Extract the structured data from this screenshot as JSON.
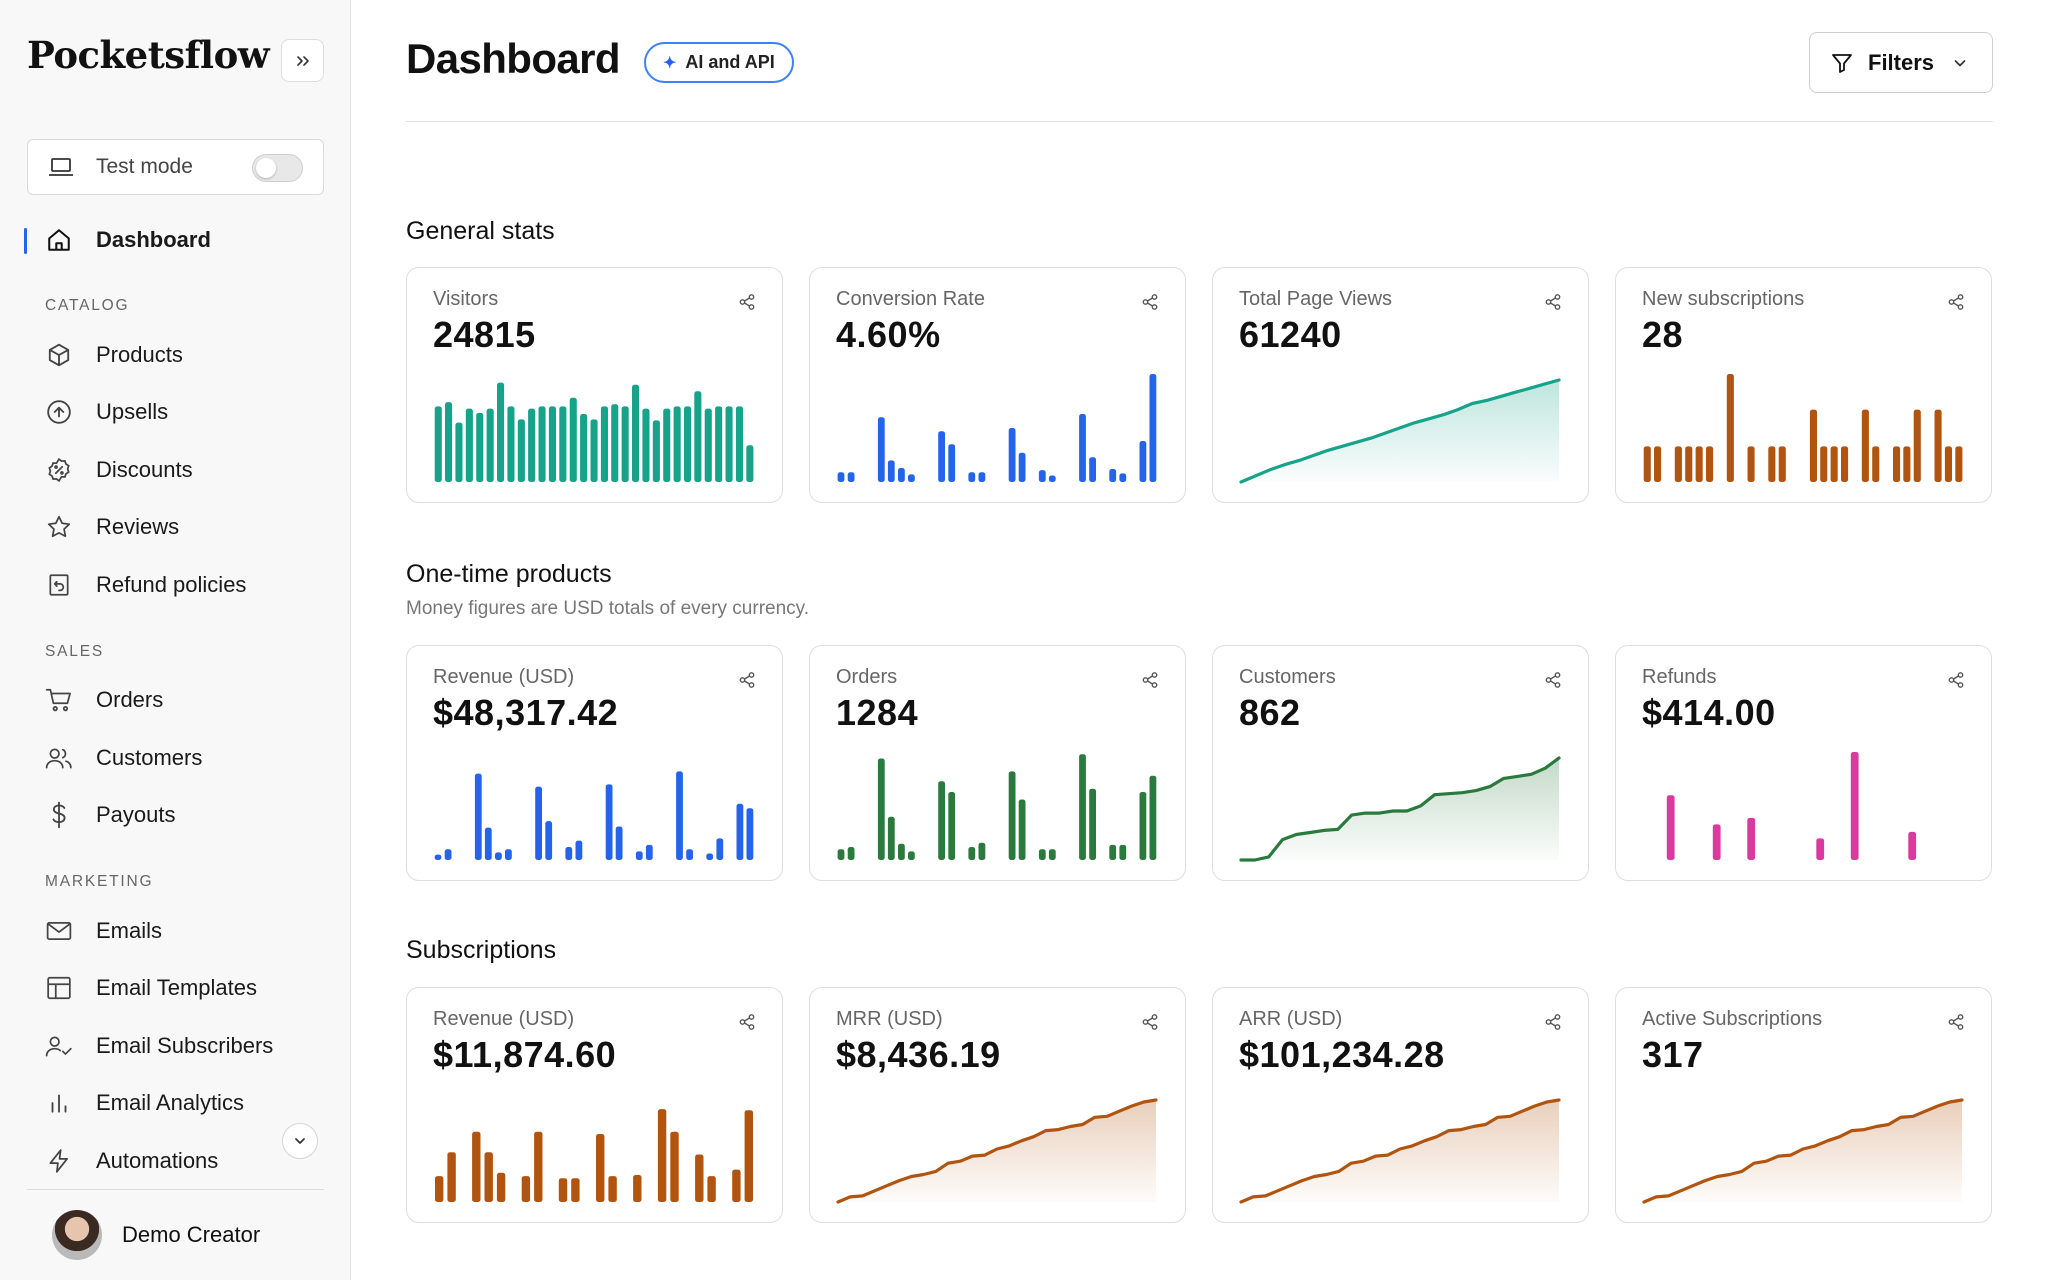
{
  "sidebar": {
    "logo": "Pocketsflow",
    "collapse_icon": "chevrons-right-icon",
    "test_mode": {
      "label": "Test mode",
      "enabled": false
    },
    "active": "Dashboard",
    "dashboard": {
      "label": "Dashboard",
      "icon": "home-icon"
    },
    "sections": {
      "catalog": "CATALOG",
      "sales": "SALES",
      "marketing": "MARKETING"
    },
    "catalog_items": [
      {
        "label": "Products",
        "icon": "box-icon"
      },
      {
        "label": "Upsells",
        "icon": "arrow-up-circle-icon"
      },
      {
        "label": "Discounts",
        "icon": "percent-badge-icon"
      },
      {
        "label": "Reviews",
        "icon": "star-icon"
      },
      {
        "label": "Refund policies",
        "icon": "refund-receipt-icon"
      }
    ],
    "sales_items": [
      {
        "label": "Orders",
        "icon": "cart-icon"
      },
      {
        "label": "Customers",
        "icon": "users-icon"
      },
      {
        "label": "Payouts",
        "icon": "dollar-icon"
      }
    ],
    "marketing_items": [
      {
        "label": "Emails",
        "icon": "mail-icon"
      },
      {
        "label": "Email Templates",
        "icon": "layout-template-icon"
      },
      {
        "label": "Email Subscribers",
        "icon": "user-check-icon"
      },
      {
        "label": "Email Analytics",
        "icon": "bar-chart-icon"
      },
      {
        "label": "Automations",
        "icon": "zap-icon"
      }
    ],
    "user": {
      "name": "Demo Creator"
    }
  },
  "header": {
    "title": "Dashboard",
    "badge": "AI and API",
    "filters_label": "Filters"
  },
  "sections": {
    "general": {
      "title": "General stats"
    },
    "onetime": {
      "title": "One-time products",
      "subtitle": "Money figures are USD totals of every currency."
    },
    "subs": {
      "title": "Subscriptions"
    }
  },
  "colors": {
    "accent": "#2563eb",
    "teal": "#17a38a",
    "blue": "#2563eb",
    "green": "#2b7a3d",
    "orange": "#b1540f",
    "pink": "#d93a9e"
  },
  "cards": [
    {
      "title": "Visitors",
      "value": "24815"
    },
    {
      "title": "Conversion Rate",
      "value": "4.60%"
    },
    {
      "title": "Total Page Views",
      "value": "61240"
    },
    {
      "title": "New subscriptions",
      "value": "28"
    },
    {
      "title": "Revenue (USD)",
      "value": "$48,317.42"
    },
    {
      "title": "Orders",
      "value": "1284"
    },
    {
      "title": "Customers",
      "value": "862"
    },
    {
      "title": "Refunds",
      "value": "$414.00"
    },
    {
      "title": "Revenue (USD)",
      "value": "$11,874.60"
    },
    {
      "title": "MRR (USD)",
      "value": "$8,436.19"
    },
    {
      "title": "ARR (USD)",
      "value": "$101,234.28"
    },
    {
      "title": "Active Subscriptions",
      "value": "317"
    }
  ],
  "chart_data": [
    {
      "type": "bar",
      "series": [
        {
          "values": [
            0.7,
            0.74,
            0.55,
            0.68,
            0.64,
            0.68,
            0.92,
            0.7,
            0.58,
            0.68,
            0.7,
            0.7,
            0.7,
            0.78,
            0.63,
            0.58,
            0.7,
            0.72,
            0.7,
            0.9,
            0.68,
            0.57,
            0.68,
            0.7,
            0.7,
            0.84,
            0.68,
            0.7,
            0.7,
            0.7,
            0.34
          ]
        }
      ],
      "color": "#17a38a"
    },
    {
      "type": "bar",
      "series": [
        {
          "values": [
            0.09,
            0.09,
            0,
            0,
            0.6,
            0.2,
            0.13,
            0.07,
            0,
            0,
            0.47,
            0.35,
            0,
            0.09,
            0.09,
            0,
            0,
            0.5,
            0.27,
            0,
            0.11,
            0.06,
            0,
            0,
            0.63,
            0.23,
            0,
            0.12,
            0.08,
            0,
            0.38,
            1
          ]
        }
      ],
      "color": "#2563eb"
    },
    {
      "type": "area",
      "series": [
        {
          "values": [
            0.0,
            0.06,
            0.12,
            0.17,
            0.21,
            0.26,
            0.31,
            0.35,
            0.39,
            0.43,
            0.48,
            0.53,
            0.58,
            0.62,
            0.66,
            0.71,
            0.77,
            0.8,
            0.84,
            0.88,
            0.92,
            0.96,
            1.0
          ]
        }
      ],
      "color": "#17a38a"
    },
    {
      "type": "bar",
      "series": [
        {
          "values": [
            0.33,
            0.33,
            0,
            0.33,
            0.33,
            0.33,
            0.33,
            0,
            1,
            0,
            0.33,
            0,
            0.33,
            0.33,
            0,
            0,
            0.67,
            0.33,
            0.33,
            0.33,
            0,
            0.67,
            0.33,
            0,
            0.33,
            0.33,
            0.67,
            0,
            0.67,
            0.33,
            0.33
          ]
        }
      ],
      "color": "#b1540f"
    },
    {
      "type": "bar",
      "series": [
        {
          "values": [
            0.05,
            0.1,
            0,
            0,
            0.8,
            0.3,
            0.07,
            0.1,
            0,
            0,
            0.68,
            0.36,
            0,
            0.12,
            0.18,
            0,
            0,
            0.7,
            0.31,
            0,
            0.08,
            0.14,
            0,
            0,
            0.82,
            0.1,
            0,
            0.06,
            0.2,
            0,
            0.52,
            0.48
          ]
        }
      ],
      "color": "#2563eb"
    },
    {
      "type": "bar",
      "series": [
        {
          "values": [
            0.1,
            0.12,
            0,
            0,
            0.94,
            0.4,
            0.15,
            0.08,
            0,
            0,
            0.73,
            0.63,
            0,
            0.12,
            0.16,
            0,
            0,
            0.82,
            0.56,
            0,
            0.1,
            0.1,
            0,
            0,
            0.98,
            0.66,
            0,
            0.14,
            0.14,
            0,
            0.63,
            0.78
          ]
        }
      ],
      "color": "#2b7a3d"
    },
    {
      "type": "area",
      "series": [
        {
          "values": [
            0.0,
            0.0,
            0.03,
            0.2,
            0.25,
            0.27,
            0.29,
            0.3,
            0.44,
            0.46,
            0.46,
            0.48,
            0.48,
            0.53,
            0.64,
            0.65,
            0.66,
            0.68,
            0.72,
            0.8,
            0.82,
            0.84,
            0.9,
            1.0
          ]
        }
      ],
      "color": "#2b7a3d"
    },
    {
      "type": "bar",
      "series": [
        {
          "values": [
            0,
            0,
            0.6,
            0,
            0,
            0,
            0.33,
            0,
            0,
            0.39,
            0,
            0,
            0,
            0,
            0,
            0.2,
            0,
            0,
            1,
            0,
            0,
            0,
            0,
            0.26,
            0,
            0,
            0,
            0
          ]
        }
      ],
      "color": "#d93a9e"
    },
    {
      "type": "bar",
      "series": [
        {
          "values": [
            0.24,
            0.46,
            0,
            0.65,
            0.46,
            0.27,
            0,
            0.24,
            0.65,
            0,
            0.22,
            0.22,
            0,
            0.63,
            0.24,
            0,
            0.25,
            0,
            0.86,
            0.65,
            0,
            0.44,
            0.24,
            0,
            0.3,
            0.85
          ]
        }
      ],
      "color": "#b1540f"
    },
    {
      "type": "area",
      "series": [
        {
          "values": [
            0,
            0.05,
            0.06,
            0.11,
            0.16,
            0.21,
            0.25,
            0.27,
            0.3,
            0.38,
            0.4,
            0.45,
            0.46,
            0.52,
            0.55,
            0.6,
            0.64,
            0.7,
            0.71,
            0.74,
            0.76,
            0.83,
            0.84,
            0.89,
            0.94,
            0.98,
            1.0
          ]
        }
      ],
      "color": "#b1540f"
    },
    {
      "type": "area",
      "series": [
        {
          "values": [
            0,
            0.05,
            0.06,
            0.11,
            0.16,
            0.21,
            0.25,
            0.27,
            0.3,
            0.38,
            0.4,
            0.45,
            0.46,
            0.52,
            0.55,
            0.6,
            0.64,
            0.7,
            0.71,
            0.74,
            0.76,
            0.83,
            0.84,
            0.89,
            0.94,
            0.98,
            1.0
          ]
        }
      ],
      "color": "#b1540f"
    },
    {
      "type": "area",
      "series": [
        {
          "values": [
            0,
            0.05,
            0.06,
            0.11,
            0.16,
            0.21,
            0.25,
            0.27,
            0.3,
            0.38,
            0.4,
            0.45,
            0.46,
            0.52,
            0.55,
            0.6,
            0.64,
            0.7,
            0.71,
            0.74,
            0.76,
            0.83,
            0.84,
            0.89,
            0.94,
            0.98,
            1.0
          ]
        }
      ],
      "color": "#b1540f"
    }
  ]
}
